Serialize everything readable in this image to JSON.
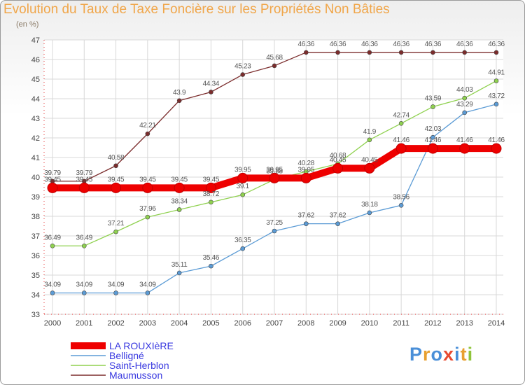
{
  "chart_data": {
    "type": "line",
    "title": "Evolution du Taux de Taxe Foncière sur les Propriétés Non Bâties",
    "subtitle": "(en %)",
    "xlabel": "",
    "ylabel": "",
    "ylim": [
      33,
      47
    ],
    "yticks": [
      33,
      34,
      35,
      36,
      37,
      38,
      39,
      40,
      41,
      42,
      43,
      44,
      45,
      46,
      47
    ],
    "categories": [
      "2000",
      "2001",
      "2002",
      "2003",
      "2004",
      "2005",
      "2006",
      "2007",
      "2008",
      "2009",
      "2010",
      "2011",
      "2012",
      "2013",
      "2014"
    ],
    "grid": true,
    "legend_position": "bottom-left",
    "series": [
      {
        "name": "LA ROUXIèRE",
        "color": "#ee0000",
        "values": [
          39.45,
          39.45,
          39.45,
          39.45,
          39.45,
          39.45,
          39.95,
          39.95,
          39.95,
          40.45,
          40.45,
          41.46,
          41.46,
          41.46,
          41.46
        ],
        "labels": [
          "39.45",
          "39.45",
          "39.45",
          "39.45",
          "39.45",
          "39.45",
          "39.95",
          "39.95",
          "39.95",
          "40.45",
          "40.45",
          "41.46",
          "41.46",
          "41.46",
          "41.46"
        ]
      },
      {
        "name": "Belligné",
        "color": "#5b9bd5",
        "values": [
          34.09,
          34.09,
          34.09,
          34.09,
          35.11,
          35.46,
          36.35,
          37.25,
          37.62,
          37.62,
          38.18,
          38.56,
          42.03,
          43.29,
          43.72
        ],
        "labels": [
          "34.09",
          "34.09",
          "34.09",
          "34.09",
          "35.11",
          "35.46",
          "36.35",
          "37.25",
          "37.62",
          "37.62",
          "38.18",
          "38.56",
          "42.03",
          "43.29",
          "43.72"
        ]
      },
      {
        "name": "Saint-Herblon",
        "color": "#8fd14f",
        "values": [
          36.49,
          36.49,
          37.21,
          37.96,
          38.34,
          38.72,
          39.1,
          39.88,
          40.28,
          40.68,
          41.9,
          42.74,
          43.59,
          44.03,
          44.91
        ],
        "labels": [
          "36.49",
          "36.49",
          "37.21",
          "37.96",
          "38.34",
          "38.72",
          "39.1",
          "39.88",
          "40.28",
          "40.68",
          "41.9",
          "42.74",
          "43.59",
          "44.03",
          "44.91"
        ]
      },
      {
        "name": "Maumusson",
        "color": "#7b2c2c",
        "values": [
          39.79,
          39.79,
          40.58,
          42.21,
          43.9,
          44.34,
          45.23,
          45.68,
          46.36,
          46.36,
          46.36,
          46.36,
          46.36,
          46.36,
          46.36
        ],
        "labels": [
          "39.79",
          "39.79",
          "40.58",
          "42.21",
          "43.9",
          "44.34",
          "45.23",
          "45.68",
          "46.36",
          "46.36",
          "46.36",
          "46.36",
          "46.36",
          "46.36",
          "46.36"
        ]
      }
    ]
  },
  "logo": {
    "text": "Proxiti",
    "letters": [
      "P",
      "r",
      "o",
      "x",
      "i",
      "t",
      "i"
    ],
    "colors": [
      "#4a8fd8",
      "#e8a030",
      "#4a8fd8",
      "#e84a30",
      "#4a8fd8",
      "#e8a030",
      "#8fc43a"
    ]
  }
}
